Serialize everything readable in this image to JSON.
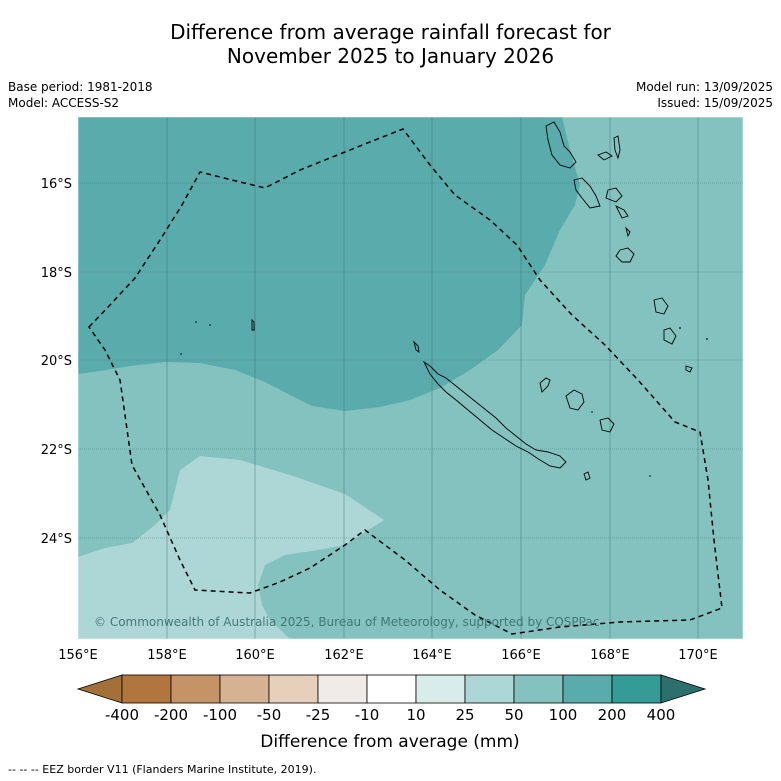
{
  "title": {
    "line1": "Difference from average rainfall forecast for",
    "line2": "November 2025 to January 2026"
  },
  "meta": {
    "base_period": "Base period: 1981-2018",
    "model": "Model: ACCESS-S2",
    "model_run": "Model run: 13/09/2025",
    "issued": "Issued: 15/09/2025"
  },
  "map": {
    "lat_labels": [
      "16°S",
      "18°S",
      "20°S",
      "22°S",
      "24°S"
    ],
    "lon_labels": [
      "156°E",
      "158°E",
      "160°E",
      "162°E",
      "164°E",
      "166°E",
      "168°E",
      "170°E"
    ],
    "copyright": "© Commonwealth of Australia 2025, Bureau of Meteorology, supported by COSPPac"
  },
  "colorbar": {
    "ticks": [
      "-400",
      "-200",
      "-100",
      "-50",
      "-25",
      "-10",
      "10",
      "25",
      "50",
      "100",
      "200",
      "400"
    ],
    "colors": {
      "low_extend": "#a3703a",
      "m400_m200": "#b0763e",
      "m200_m100": "#c49466",
      "m100_m50": "#d5b292",
      "m50_m25": "#e6d0bc",
      "m25_m10": "#f0ebe6",
      "m10_p10": "#ffffff",
      "p10_p25": "#d8ecea",
      "p25_p50": "#add7d6",
      "p50_p100": "#84c2c0",
      "p100_p200": "#5aabab",
      "p200_p400": "#349b96",
      "high_extend": "#2d6f6d"
    },
    "label": "Difference from average (mm)"
  },
  "footer": {
    "legend": "--  --  -- EEZ border V11 (Flanders Marine Institute, 2019)."
  }
}
